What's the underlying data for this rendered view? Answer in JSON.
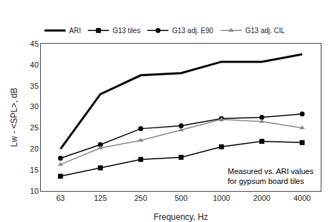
{
  "chart_data": {
    "type": "line",
    "x": [
      63,
      125,
      250,
      500,
      1000,
      2000,
      4000
    ],
    "series": [
      {
        "name": "ARI",
        "color": "#000000",
        "marker": "none",
        "values": [
          20.0,
          33.0,
          37.5,
          38.0,
          40.7,
          40.7,
          42.5
        ]
      },
      {
        "name": "G13 tiles",
        "color": "#000000",
        "marker": "square",
        "values": [
          13.5,
          15.5,
          17.5,
          18.0,
          20.5,
          21.8,
          21.5
        ]
      },
      {
        "name": "G13 adj. E90",
        "color": "#000000",
        "marker": "circle",
        "values": [
          17.8,
          21.0,
          24.8,
          25.5,
          27.2,
          27.5,
          28.3
        ]
      },
      {
        "name": "G13 adj. CIL",
        "color": "#888888",
        "marker": "triangle-up",
        "values": [
          16.3,
          20.2,
          22.0,
          24.5,
          27.0,
          26.5,
          25.0
        ]
      }
    ],
    "x_label": "Frequency, Hz",
    "y_label": "Lw - <SPL>, dB",
    "annotations": [
      "Measured vs. ARI values",
      "for gypsum board tiles"
    ],
    "log": "x",
    "xlim": [
      45,
      5500
    ],
    "xticks": [
      63,
      125,
      250,
      500,
      1000,
      2000,
      4000
    ],
    "ylim": [
      10,
      45
    ],
    "yticks": [
      10,
      15,
      20,
      25,
      30,
      35,
      40,
      45
    ],
    "grid": false,
    "legend": "upper left"
  }
}
